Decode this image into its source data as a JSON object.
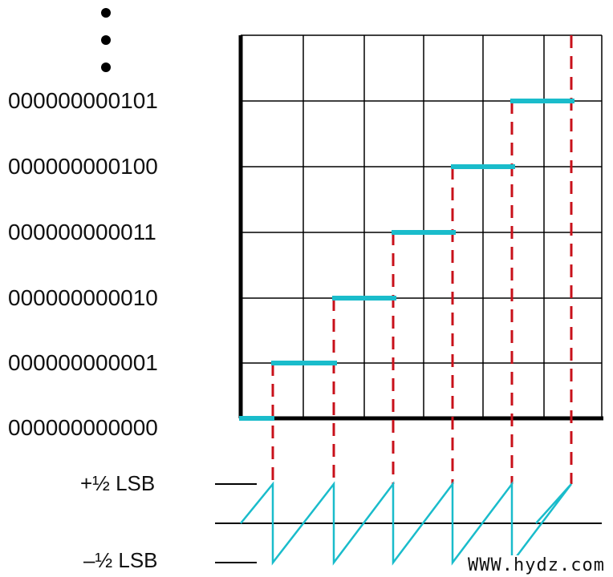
{
  "codes": [
    "000000000101",
    "000000000100",
    "000000000011",
    "000000000010",
    "000000000001",
    "000000000000"
  ],
  "lsb_labels": {
    "plus": "+½ LSB",
    "minus": "–½ LSB"
  },
  "watermark": "WWW.hydz.com",
  "colors": {
    "step": "#1ABCCB",
    "transition": "#C8101A",
    "grid": "#000000",
    "error": "#1ABCCB"
  }
}
